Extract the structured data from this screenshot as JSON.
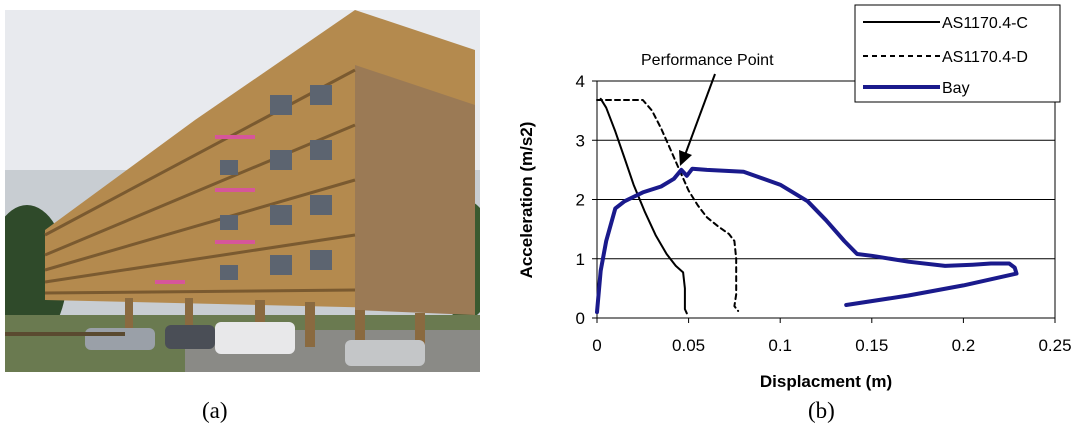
{
  "captions": {
    "a": "(a)",
    "b": "(b)"
  },
  "chart_data": {
    "type": "line",
    "xlabel": "Displacment (m)",
    "ylabel": "Acceleration (m/s2)",
    "xlim": [
      0,
      0.25
    ],
    "ylim": [
      0,
      4
    ],
    "xticks": [
      0,
      0.05,
      0.1,
      0.15,
      0.2,
      0.25
    ],
    "xtick_labels": [
      "0",
      "0.05",
      "0.1",
      "0.15",
      "0.2",
      "0.25"
    ],
    "yticks": [
      0,
      1,
      2,
      3,
      4
    ],
    "ytick_labels": [
      "0",
      "1",
      "2",
      "3",
      "4"
    ],
    "grid": "horizontal",
    "legend_position": "top-right",
    "annotation": {
      "text": "Performance Point",
      "x": 0.046,
      "y": 2.45
    },
    "colors": {
      "bay": "#1a1a8c",
      "demand": "#000000"
    },
    "series": [
      {
        "name": "AS1170.4-C",
        "style": "solid",
        "x": [
          0.002,
          0.005,
          0.01,
          0.015,
          0.02,
          0.026,
          0.032,
          0.038,
          0.043,
          0.047,
          0.048,
          0.048,
          0.049
        ],
        "y": [
          3.7,
          3.55,
          3.15,
          2.7,
          2.25,
          1.8,
          1.4,
          1.08,
          0.88,
          0.77,
          0.5,
          0.15,
          0.08
        ]
      },
      {
        "name": "AS1170.4-D",
        "style": "dashed",
        "x": [
          0.0,
          0.025,
          0.03,
          0.035,
          0.04,
          0.045,
          0.05,
          0.055,
          0.06,
          0.066,
          0.072,
          0.075,
          0.076,
          0.076,
          0.075,
          0.077
        ],
        "y": [
          3.68,
          3.68,
          3.5,
          3.2,
          2.85,
          2.5,
          2.15,
          1.9,
          1.7,
          1.55,
          1.42,
          1.3,
          1.0,
          0.4,
          0.2,
          0.12
        ]
      },
      {
        "name": "Bay",
        "style": "solid-thick",
        "x": [
          0.0,
          0.002,
          0.005,
          0.01,
          0.015,
          0.025,
          0.035,
          0.042,
          0.046,
          0.049,
          0.052,
          0.06,
          0.08,
          0.1,
          0.115,
          0.125,
          0.135,
          0.142,
          0.15,
          0.17,
          0.19,
          0.205,
          0.215,
          0.225,
          0.228,
          0.229,
          0.2,
          0.17,
          0.136
        ],
        "y": [
          0.1,
          0.8,
          1.3,
          1.85,
          1.97,
          2.12,
          2.22,
          2.35,
          2.5,
          2.4,
          2.52,
          2.5,
          2.47,
          2.25,
          1.97,
          1.65,
          1.3,
          1.08,
          1.05,
          0.95,
          0.88,
          0.9,
          0.92,
          0.92,
          0.85,
          0.75,
          0.55,
          0.38,
          0.22
        ]
      }
    ]
  }
}
